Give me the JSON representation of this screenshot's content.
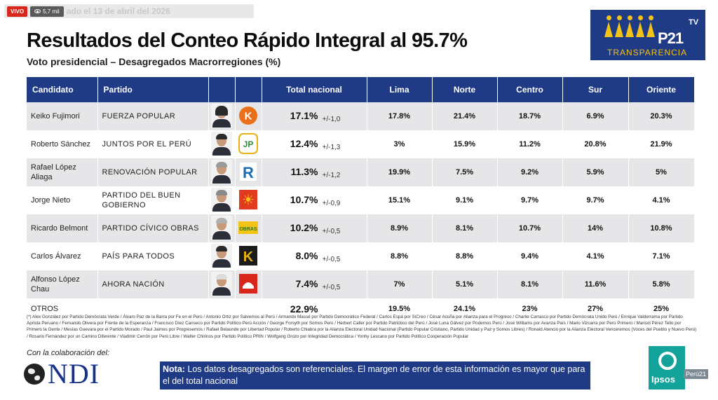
{
  "live": {
    "badge": "VIVO",
    "views": "5,7 mil",
    "date_text": "ado el 13 de abril del 2026"
  },
  "title": "Resultados del Conteo Rápido Integral al 95.7%",
  "subtitle": "Voto presidencial – Desagregados Macrorregiones (%)",
  "brand": {
    "figures": "people-figures-icon",
    "p21": "P21",
    "tv": "TV",
    "transparencia": "TRANSPARENCIA"
  },
  "table": {
    "headers": {
      "candidato": "Candidato",
      "partido": "Partido",
      "total": "Total nacional",
      "lima": "Lima",
      "norte": "Norte",
      "centro": "Centro",
      "sur": "Sur",
      "oriente": "Oriente"
    },
    "rows": [
      {
        "candidate": "Keiko Fujimori",
        "party": "FUERZA POPULAR",
        "total": "17.1%",
        "moe": "+/-1,0",
        "lima": "17.8%",
        "norte": "21.4%",
        "centro": "18.7%",
        "sur": "6.9%",
        "oriente": "20.3%"
      },
      {
        "candidate": "Roberto Sánchez",
        "party": "JUNTOS POR EL PERÚ",
        "total": "12.4%",
        "moe": "+/-1,3",
        "lima": "3%",
        "norte": "15.9%",
        "centro": "11.2%",
        "sur": "20.8%",
        "oriente": "21.9%"
      },
      {
        "candidate": "Rafael López Aliaga",
        "party": "RENOVACIÓN POPULAR",
        "total": "11.3%",
        "moe": "+/-1,2",
        "lima": "19.9%",
        "norte": "7.5%",
        "centro": "9.2%",
        "sur": "5.9%",
        "oriente": "5%"
      },
      {
        "candidate": "Jorge Nieto",
        "party": "PARTIDO DEL BUEN GOBIERNO",
        "total": "10.7%",
        "moe": "+/-0,9",
        "lima": "15.1%",
        "norte": "9.1%",
        "centro": "9.7%",
        "sur": "9.7%",
        "oriente": "4.1%"
      },
      {
        "candidate": "Ricardo Belmont",
        "party": "PARTIDO CÍVICO OBRAS",
        "total": "10.2%",
        "moe": "+/-0,5",
        "lima": "8.9%",
        "norte": "8.1%",
        "centro": "10.7%",
        "sur": "14%",
        "oriente": "10.8%"
      },
      {
        "candidate": "Carlos Álvarez",
        "party": "PAÍS PARA TODOS",
        "total": "8.0%",
        "moe": "+/-0,5",
        "lima": "8.8%",
        "norte": "8.8%",
        "centro": "9.4%",
        "sur": "4.1%",
        "oriente": "7.1%"
      },
      {
        "candidate": "Alfonso López Chau",
        "party": "AHORA NACIÓN",
        "total": "7.4%",
        "moe": "+/-0,5",
        "lima": "7%",
        "norte": "5.1%",
        "centro": "8.1%",
        "sur": "11.6%",
        "oriente": "5.8%"
      }
    ],
    "otros": {
      "label": "OTROS",
      "total": "22.9%",
      "lima": "19.5%",
      "norte": "24.1%",
      "centro": "23%",
      "sur": "27%",
      "oriente": "25%"
    },
    "party_logos": {
      "fuerza_popular": {
        "letter": "K",
        "color": "#e8701a"
      },
      "juntos_peru": {
        "letter": "JP",
        "color": "#2e8b3c"
      },
      "renovacion": {
        "letter": "R",
        "color": "#1c6fb5"
      },
      "buen_gobierno": {
        "letter": "☀",
        "color": "#e23a1f"
      },
      "obras": {
        "letter": "OBRAS",
        "color": "#1f7a2a"
      },
      "pais_todos": {
        "letter": "K",
        "color": "#e8b20e"
      },
      "ahora_nacion": {
        "letter": "",
        "color": "#d9261c"
      }
    }
  },
  "footnote": "(*) Alex González por Partido Demócrata Verde / Álvaro Paz de la Barra por Fe en el Perú / Antonio Ortiz por Salvemos al Perú / Armando Massé por Partido Democrático Federal / Carlos Espá por SíCreo / César Acuña por Alianza para el Progreso / Charlie Carrasco por Partido Demócrata Unido Perú / Enrique Valderrama por Partido Aprista Peruano / Fernando Olivera por Frente de la Esperanza / Francisco Díez Canseco por Partido Político Perú Acción / George Forsyth por Somos Perú / Herbert Caller por Partido Patriótico del Perú / José Luna Gálvez por Podemos Perú / José Williams por Avanza País / Mario Vizcarra por Perú Primero / Marisol Pérez Tello por Primero la Gente / Mesías Guevara por el Partido Morado / Paul Jaimes por Progresemos / Rafael Belaunde por Libertad Popular / Roberto Chiabra por la Alianza Electoral Unidad Nacional (Partido Popular Cristiano, Partido Unidad y Paz y Somos Libres) / Ronald Atencio por la Alianza Electoral Venceremos (Voces del Pueblo y Nuevo Perú) / Rosario Fernández por un Camino Diferente / Vladimir Cerrón por Perú Libre / Walter Chirinos por Partido Político PRIN / Wolfgang Grozo por Integridad Democrática / Yonhy Lescano por Partido Político Cooperación Popular",
  "collab_label": "Con la colaboración del:",
  "ndi": "NDI",
  "note": {
    "label": "Nota:",
    "text": "Los datos desagregados son referenciales. El margen de error de esta información es mayor que para el del total nacional"
  },
  "ipsos": "Ipsos",
  "peru21": "Perú21"
}
